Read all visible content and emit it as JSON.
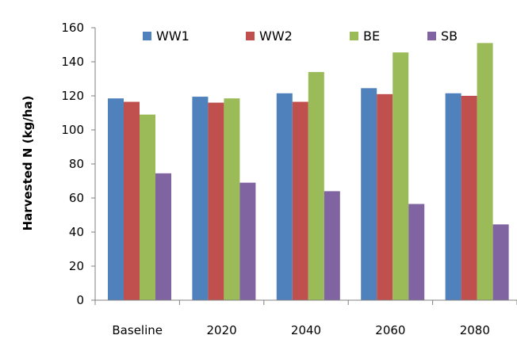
{
  "chart_data": {
    "type": "bar",
    "title": "",
    "xlabel": "",
    "ylabel": "Harvested N (kg/ha)",
    "ylim": [
      0,
      160
    ],
    "yticks": [
      0,
      20,
      40,
      60,
      80,
      100,
      120,
      140,
      160
    ],
    "grid": false,
    "legend_position": "top",
    "categories": [
      "Baseline",
      "2020",
      "2040",
      "2060",
      "2080"
    ],
    "series": [
      {
        "name": "WW1",
        "color": "#4f81bd",
        "values": [
          118.5,
          119.5,
          121.5,
          124.5,
          121.5
        ]
      },
      {
        "name": "WW2",
        "color": "#c0504d",
        "values": [
          116.5,
          116,
          116.5,
          121,
          120
        ]
      },
      {
        "name": "BE",
        "color": "#9bbb59",
        "values": [
          109,
          118.5,
          134,
          145.5,
          151
        ]
      },
      {
        "name": "SB",
        "color": "#8064a2",
        "values": [
          74.5,
          69,
          64,
          56.5,
          44.5
        ]
      }
    ]
  }
}
